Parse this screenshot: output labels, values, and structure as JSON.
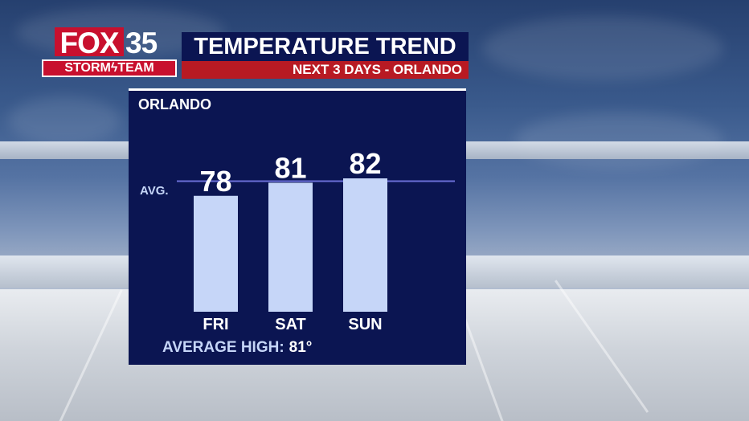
{
  "logo": {
    "brand": "FOX",
    "channel": "35",
    "team_left": "STORM",
    "team_right": "TEAM"
  },
  "header": {
    "title": "TEMPERATURE TREND",
    "subtitle": "NEXT 3 DAYS - ORLANDO"
  },
  "panel": {
    "city": "ORLANDO",
    "avg_line_label": "AVG.",
    "average_high_label": "AVERAGE HIGH:",
    "average_high_value": "81°"
  },
  "colors": {
    "panel_bg": "#0b1552",
    "bar": "#c6d6f8",
    "avg_line": "#6b6fd8",
    "brand_red": "#c8102e",
    "subtitle_red": "#b81a23"
  },
  "chart_data": {
    "type": "bar",
    "title": "TEMPERATURE TREND",
    "subtitle": "NEXT 3 DAYS - ORLANDO",
    "categories": [
      "FRI",
      "SAT",
      "SUN"
    ],
    "values": [
      78,
      81,
      82
    ],
    "reference_line": {
      "label": "AVG.",
      "value": 81
    },
    "ylim": [
      50,
      82
    ],
    "grid": false,
    "legend": "none",
    "xlabel": "",
    "ylabel": ""
  }
}
